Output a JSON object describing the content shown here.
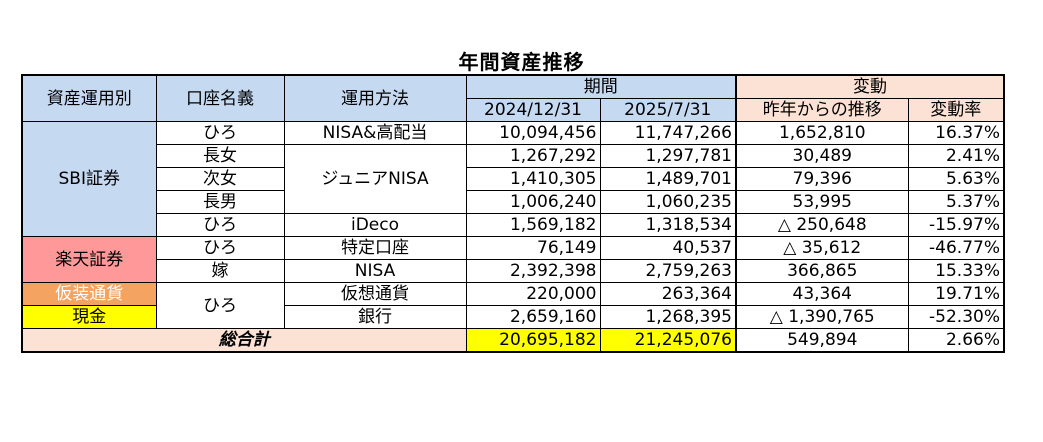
{
  "title": "年間資産推移",
  "header": {
    "asset_type": "資産運用別",
    "account_holder": "口座名義",
    "method": "運用方法",
    "period": "期間",
    "date1": "2024/12/31",
    "date2": "2025/7/31",
    "change": "変動",
    "change_from_last": "昨年からの推移",
    "change_rate": "変動率"
  },
  "groups": {
    "sbi": "SBI証券",
    "rakuten": "楽天証券",
    "crypto": "仮装通貨",
    "cash": "現金",
    "holder_hiro_shared": "ひろ",
    "method_junior": "ジュニアNISA"
  },
  "rows": [
    {
      "holder": "ひろ",
      "method": "NISA&高配当",
      "v1": "10,094,456",
      "v2": "11,747,266",
      "diff": "1,652,810",
      "rate": "16.37%"
    },
    {
      "holder": "長女",
      "v1": "1,267,292",
      "v2": "1,297,781",
      "diff": "30,489",
      "rate": "2.41%"
    },
    {
      "holder": "次女",
      "v1": "1,410,305",
      "v2": "1,489,701",
      "diff": "79,396",
      "rate": "5.63%"
    },
    {
      "holder": "長男",
      "v1": "1,006,240",
      "v2": "1,060,235",
      "diff": "53,995",
      "rate": "5.37%"
    },
    {
      "holder": "ひろ",
      "method": "iDeco",
      "v1": "1,569,182",
      "v2": "1,318,534",
      "diff": "△ 250,648",
      "rate": "-15.97%"
    },
    {
      "holder": "ひろ",
      "method": "特定口座",
      "v1": "76,149",
      "v2": "40,537",
      "diff": "△ 35,612",
      "rate": "-46.77%"
    },
    {
      "holder": "嫁",
      "method": "NISA",
      "v1": "2,392,398",
      "v2": "2,759,263",
      "diff": "366,865",
      "rate": "15.33%"
    },
    {
      "method": "仮想通貨",
      "v1": "220,000",
      "v2": "263,364",
      "diff": "43,364",
      "rate": "19.71%"
    },
    {
      "method": "銀行",
      "v1": "2,659,160",
      "v2": "1,268,395",
      "diff": "△ 1,390,765",
      "rate": "-52.30%"
    }
  ],
  "total": {
    "label": "総合計",
    "v1": "20,695,182",
    "v2": "21,245,076",
    "diff": "549,894",
    "rate": "2.66%"
  },
  "colors": {
    "header_blue": "#c5d9f1",
    "header_peach": "#fbe2d5",
    "rakuten": "#ff9999",
    "crypto": "#f4a460",
    "cash": "#ffff00",
    "total_highlight": "#ffff00"
  }
}
